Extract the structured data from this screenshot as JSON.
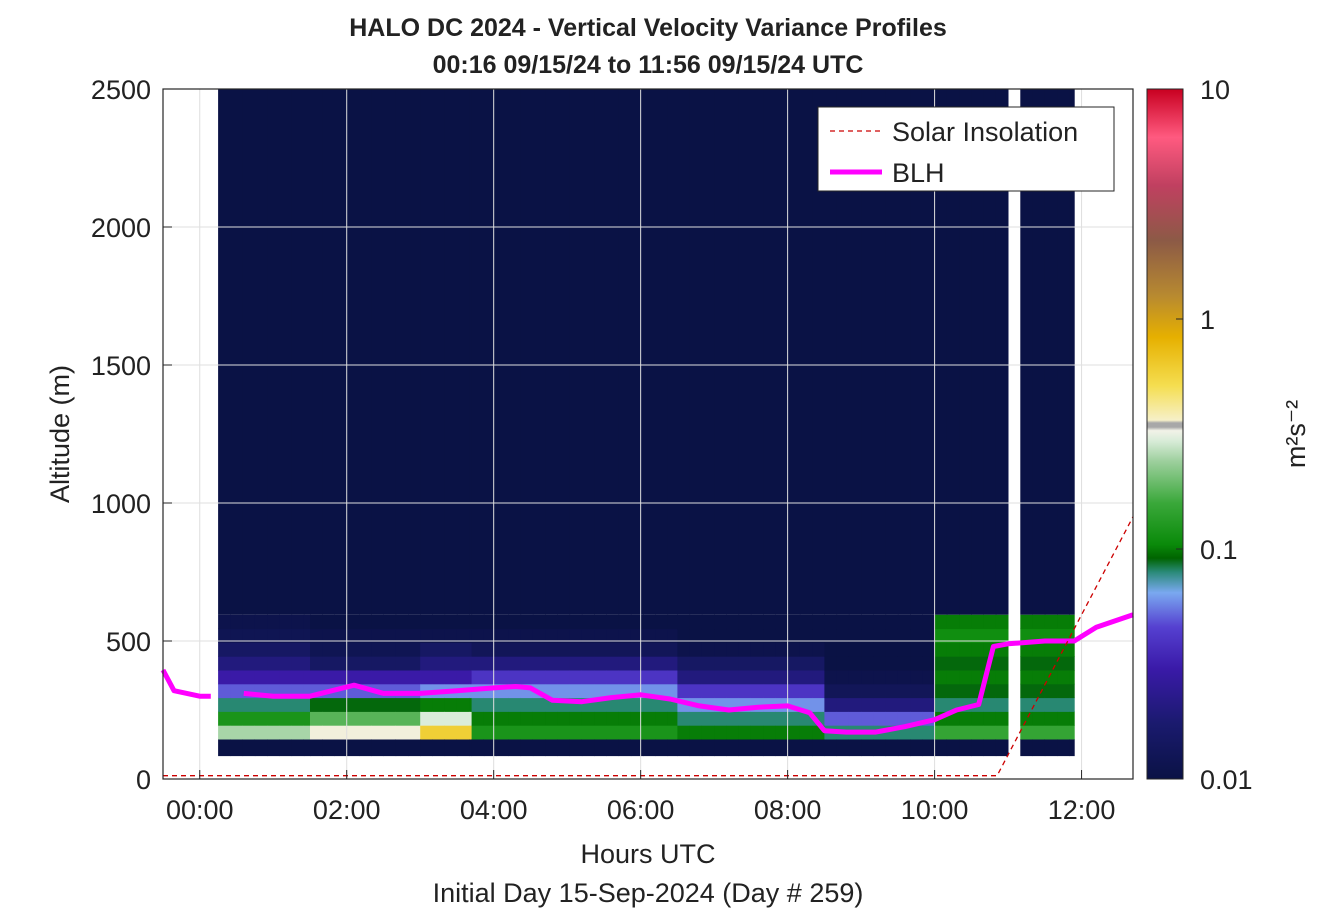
{
  "chart_data": {
    "type": "heatmap",
    "title": "HALO DC 2024 - Vertical Velocity Variance Profiles",
    "subtitle": "00:16 09/15/24 to 11:56 09/15/24  UTC",
    "xlabel": "Hours UTC",
    "xlabel2": "Initial Day 15-Sep-2024 (Day # 259)",
    "ylabel": "Altitude (m)",
    "xlim": [
      -0.5,
      12.7
    ],
    "ylim": [
      0,
      2500
    ],
    "grid": true,
    "x_ticks": [
      {
        "value": 0,
        "label": "00:00"
      },
      {
        "value": 2,
        "label": "02:00"
      },
      {
        "value": 4,
        "label": "04:00"
      },
      {
        "value": 6,
        "label": "06:00"
      },
      {
        "value": 8,
        "label": "08:00"
      },
      {
        "value": 10,
        "label": "10:00"
      },
      {
        "value": 12,
        "label": "12:00"
      }
    ],
    "y_ticks": [
      {
        "value": 0,
        "label": "0"
      },
      {
        "value": 500,
        "label": "500"
      },
      {
        "value": 1000,
        "label": "1000"
      },
      {
        "value": 1500,
        "label": "1500"
      },
      {
        "value": 2000,
        "label": "2000"
      },
      {
        "value": 2500,
        "label": "2500"
      }
    ],
    "colorbar": {
      "label": "m²s⁻²",
      "scale": "log",
      "range": [
        0.01,
        10
      ],
      "ticks": [
        {
          "value": 0.01,
          "label": "0.01"
        },
        {
          "value": 0.1,
          "label": "0.1"
        },
        {
          "value": 1,
          "label": "1"
        },
        {
          "value": 10,
          "label": "10"
        }
      ]
    },
    "legend": {
      "position": "top-right",
      "entries": [
        {
          "name": "Solar Insolation",
          "color": "#cc0000",
          "style": "dashed"
        },
        {
          "name": "BLH",
          "color": "#ff00ff",
          "style": "solid"
        }
      ]
    },
    "heatmap": {
      "x_start": 0.25,
      "x_step": 0.1667,
      "rows_altitude_m": [
        120,
        170,
        220,
        270,
        320,
        370,
        420,
        470,
        520,
        570
      ],
      "column_groups": [
        {
          "x_range": [
            0.25,
            1.5
          ],
          "values": [
            0.01,
            0.25,
            0.12,
            0.08,
            0.05,
            0.03,
            0.02,
            0.015,
            0.012,
            0.011
          ]
        },
        {
          "x_range": [
            1.5,
            3.0
          ],
          "values": [
            0.01,
            0.35,
            0.18,
            0.09,
            0.05,
            0.03,
            0.015,
            0.012,
            0.011,
            0.01
          ]
        },
        {
          "x_range": [
            3.0,
            3.7
          ],
          "values": [
            0.01,
            0.6,
            0.3,
            0.1,
            0.06,
            0.03,
            0.02,
            0.015,
            0.011,
            0.01
          ]
        },
        {
          "x_range": [
            3.7,
            6.5
          ],
          "values": [
            0.01,
            0.12,
            0.1,
            0.08,
            0.06,
            0.04,
            0.02,
            0.013,
            0.011,
            0.01
          ]
        },
        {
          "x_range": [
            6.5,
            8.5
          ],
          "values": [
            0.01,
            0.1,
            0.08,
            0.06,
            0.04,
            0.02,
            0.015,
            0.011,
            0.01,
            0.01
          ]
        },
        {
          "x_range": [
            8.5,
            10.0
          ],
          "values": [
            0.01,
            0.08,
            0.05,
            0.02,
            0.013,
            0.011,
            0.01,
            0.01,
            0.01,
            0.01
          ]
        },
        {
          "x_range": [
            10.0,
            11.9
          ],
          "values": [
            0.01,
            0.15,
            0.1,
            0.08,
            0.09,
            0.1,
            0.09,
            0.1,
            0.11,
            0.1
          ]
        }
      ],
      "upper_value": 0.01,
      "gap_x_range": [
        10.85,
        11.2
      ]
    },
    "series": [
      {
        "name": "BLH",
        "color": "#ff00ff",
        "x": [
          -0.5,
          -0.35,
          0.0,
          0.15,
          0.6,
          1.0,
          1.5,
          1.8,
          2.1,
          2.5,
          3.0,
          3.5,
          4.0,
          4.3,
          4.5,
          4.8,
          5.2,
          5.6,
          6.0,
          6.4,
          6.8,
          7.2,
          7.6,
          8.0,
          8.3,
          8.5,
          8.8,
          9.2,
          9.6,
          10.0,
          10.3,
          10.6,
          10.8,
          11.0,
          11.5,
          11.9,
          12.2,
          12.7
        ],
        "y": [
          395,
          320,
          300,
          300,
          310,
          300,
          300,
          320,
          340,
          310,
          310,
          320,
          330,
          335,
          330,
          285,
          280,
          295,
          305,
          290,
          265,
          250,
          260,
          265,
          240,
          175,
          170,
          170,
          190,
          215,
          250,
          270,
          480,
          490,
          500,
          500,
          550,
          595
        ],
        "gaps_after_x": [
          0.15
        ]
      },
      {
        "name": "Solar Insolation",
        "color": "#cc0000",
        "x": [
          -0.5,
          10.85,
          12.7
        ],
        "y": [
          12,
          12,
          950
        ]
      }
    ]
  }
}
